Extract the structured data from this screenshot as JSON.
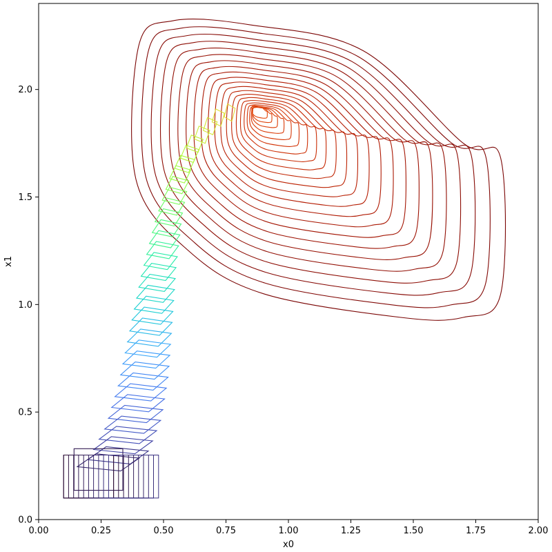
{
  "chart_data": {
    "type": "line",
    "title": "",
    "xlabel": "x0",
    "ylabel": "x1",
    "xlim": [
      0.0,
      2.0
    ],
    "ylim": [
      0.0,
      2.4
    ],
    "grid": false,
    "legend": "none",
    "x_ticks": [
      "0.00",
      "0.25",
      "0.50",
      "0.75",
      "1.00",
      "1.25",
      "1.50",
      "1.75",
      "2.00"
    ],
    "y_ticks": [
      "0.0",
      "0.5",
      "1.0",
      "1.5",
      "2.0"
    ],
    "x_tick_values": [
      0.0,
      0.25,
      0.5,
      0.75,
      1.0,
      1.25,
      1.5,
      1.75,
      2.0
    ],
    "y_tick_values": [
      0.0,
      0.5,
      1.0,
      1.5,
      2.0
    ],
    "colormap": "turbo",
    "colormap_stops": [
      "#30123b",
      "#4145ab",
      "#4675ed",
      "#39a2fc",
      "#1bcfd4",
      "#24eca6",
      "#61fc6c",
      "#a4fc3b",
      "#d1e834",
      "#f3c63a",
      "#fe9b2d",
      "#f36315",
      "#d93806",
      "#b11901",
      "#7a0403"
    ],
    "description_series": [
      {
        "name": "initial box",
        "corners": [
          [
            0.1,
            0.1
          ],
          [
            0.3,
            0.1
          ],
          [
            0.3,
            0.3
          ],
          [
            0.1,
            0.3
          ]
        ]
      },
      {
        "name": "final outer contour",
        "points": [
          [
            0.39,
            1.58
          ],
          [
            0.4,
            2.2
          ],
          [
            0.54,
            2.32
          ],
          [
            0.85,
            2.3
          ],
          [
            1.3,
            2.18
          ],
          [
            1.7,
            1.75
          ],
          [
            1.85,
            1.68
          ],
          [
            1.85,
            1.05
          ],
          [
            1.7,
            0.94
          ],
          [
            1.45,
            0.94
          ],
          [
            0.9,
            1.05
          ],
          [
            0.6,
            1.25
          ]
        ]
      }
    ],
    "trajectory_path": [
      [
        0.2,
        0.2
      ],
      [
        0.32,
        0.3
      ],
      [
        0.38,
        0.45
      ],
      [
        0.42,
        0.65
      ],
      [
        0.45,
        0.9
      ],
      [
        0.48,
        1.15
      ],
      [
        0.52,
        1.4
      ],
      [
        0.57,
        1.62
      ],
      [
        0.63,
        1.76
      ],
      [
        0.72,
        1.87
      ],
      [
        0.82,
        1.92
      ],
      [
        0.95,
        1.9
      ]
    ],
    "num_sets": 60
  }
}
